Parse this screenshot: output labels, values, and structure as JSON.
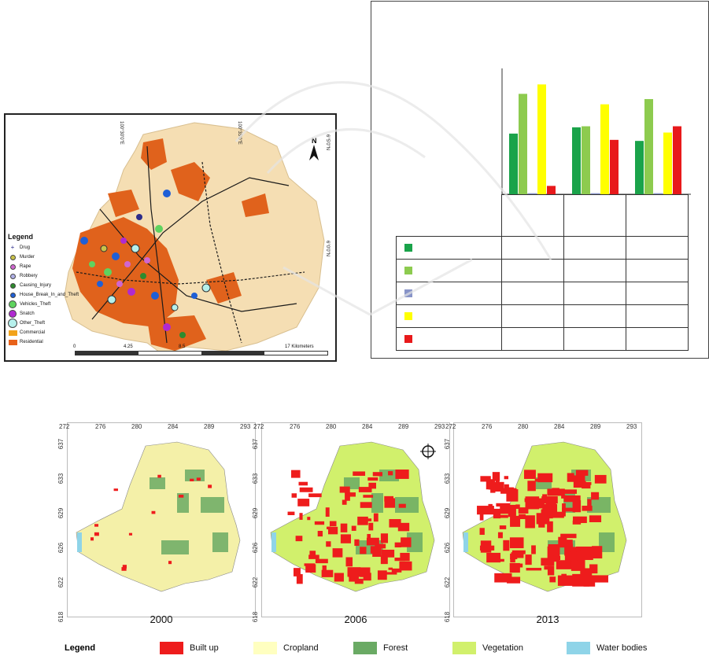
{
  "crime_map": {
    "legend_title": "Legend",
    "legend_items": [
      {
        "label": "Drug",
        "color": "#2c2c8a",
        "shape": "cross"
      },
      {
        "label": "Murder",
        "color": "#c9c24a",
        "shape": "ring"
      },
      {
        "label": "Rape",
        "color": "#d066d0",
        "shape": "circle"
      },
      {
        "label": "Robbery",
        "color": "#b0b0e6",
        "shape": "circle"
      },
      {
        "label": "Causing_Injury",
        "color": "#2e8b2e",
        "shape": "circle"
      },
      {
        "label": "House_Break_In_and_Theft",
        "color": "#1f5fd6",
        "shape": "circle"
      },
      {
        "label": "Vehicles_Theft",
        "color": "#5fd35f",
        "shape": "circle-lg"
      },
      {
        "label": "Snatch",
        "color": "#b02ad0",
        "shape": "circle-lg"
      },
      {
        "label": "Other_Theft",
        "color": "#b6f0ec",
        "shape": "circle-xl"
      },
      {
        "label": "Commercial",
        "color": "#f2a31b",
        "shape": "rect"
      },
      {
        "label": "Residential",
        "color": "#e8621a",
        "shape": "rect-pattern"
      }
    ],
    "scale_labels": [
      "0",
      "4.25",
      "8.5",
      "17 Kilometers"
    ],
    "coord_labels": [
      "100°30'0\"E",
      "100°35'0\"E",
      "6°5'0\"N",
      "6°0'0\"N"
    ],
    "north_label": "N",
    "colors": {
      "base": "#f5deb3",
      "residential": "#e0621c",
      "road": "#1a1a1a"
    }
  },
  "chart": {
    "chart_data": {
      "type": "bar",
      "categories": [
        "",
        "",
        ""
      ],
      "series": [
        {
          "name": "",
          "color": "#1aa34a",
          "values": [
            58,
            64,
            51
          ]
        },
        {
          "name": "",
          "color": "#8dcb4f",
          "values": [
            96,
            65,
            91
          ]
        },
        {
          "name": "",
          "color": "#8894c8",
          "values": [
            1,
            1,
            1
          ]
        },
        {
          "name": "",
          "color": "#ffff00",
          "values": [
            105,
            86,
            59
          ]
        },
        {
          "name": "",
          "color": "#e8191b",
          "values": [
            8,
            52,
            65
          ]
        }
      ]
    }
  },
  "lulc": {
    "years": [
      "2000",
      "2006",
      "2013"
    ],
    "x_ticks": [
      "272",
      "276",
      "280",
      "284",
      "289",
      "293"
    ],
    "y_ticks": [
      "637",
      "633",
      "629",
      "626",
      "622",
      "618"
    ],
    "legend_title": "Legend",
    "legend_items": [
      {
        "label": "Built up",
        "color": "#ee1c1c"
      },
      {
        "label": "Cropland",
        "color": "#ffffc0"
      },
      {
        "label": "Forest",
        "color": "#6aaa64"
      },
      {
        "label": "Vegetation",
        "color": "#d1f06c"
      },
      {
        "label": "Water bodies",
        "color": "#8fd4e8"
      }
    ]
  }
}
